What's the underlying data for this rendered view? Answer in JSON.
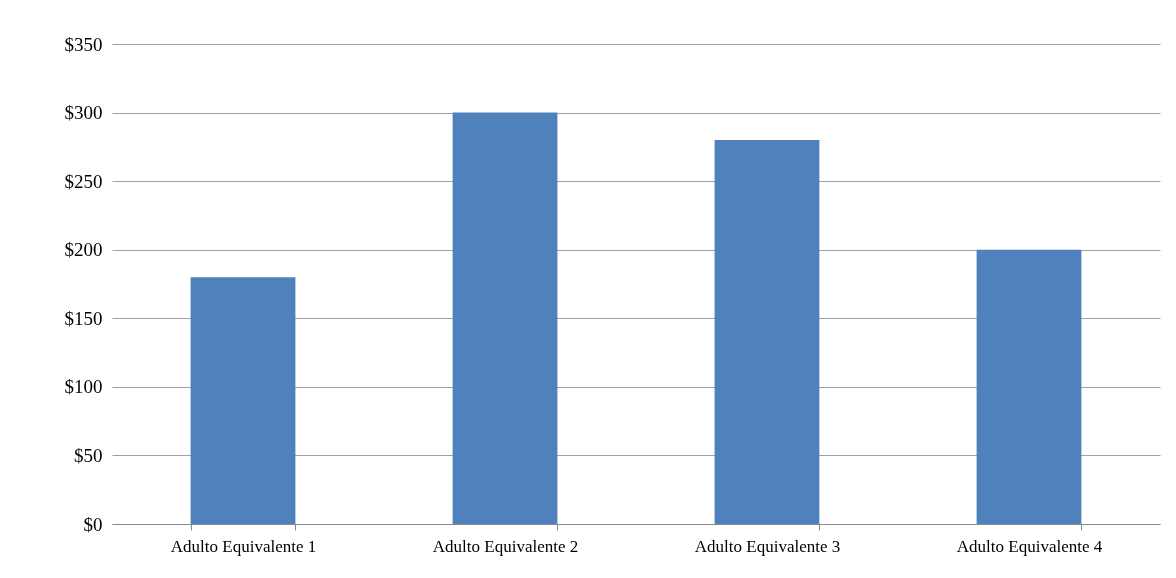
{
  "chart_data": {
    "type": "bar",
    "categories": [
      "Adulto Equivalente 1",
      "Adulto Equivalente 2",
      "Adulto Equivalente 3",
      "Adulto Equivalente 4"
    ],
    "values": [
      180,
      300,
      280,
      200
    ],
    "color": "#4f81bd",
    "ylim": [
      0,
      350
    ],
    "yticks": [
      {
        "value": 0,
        "label": "$0"
      },
      {
        "value": 50,
        "label": "$50"
      },
      {
        "value": 100,
        "label": "$100"
      },
      {
        "value": 150,
        "label": "$150"
      },
      {
        "value": 200,
        "label": "$200"
      },
      {
        "value": 250,
        "label": "$250"
      },
      {
        "value": 300,
        "label": "$300"
      },
      {
        "value": 350,
        "label": "$350"
      }
    ],
    "grid": "y"
  }
}
